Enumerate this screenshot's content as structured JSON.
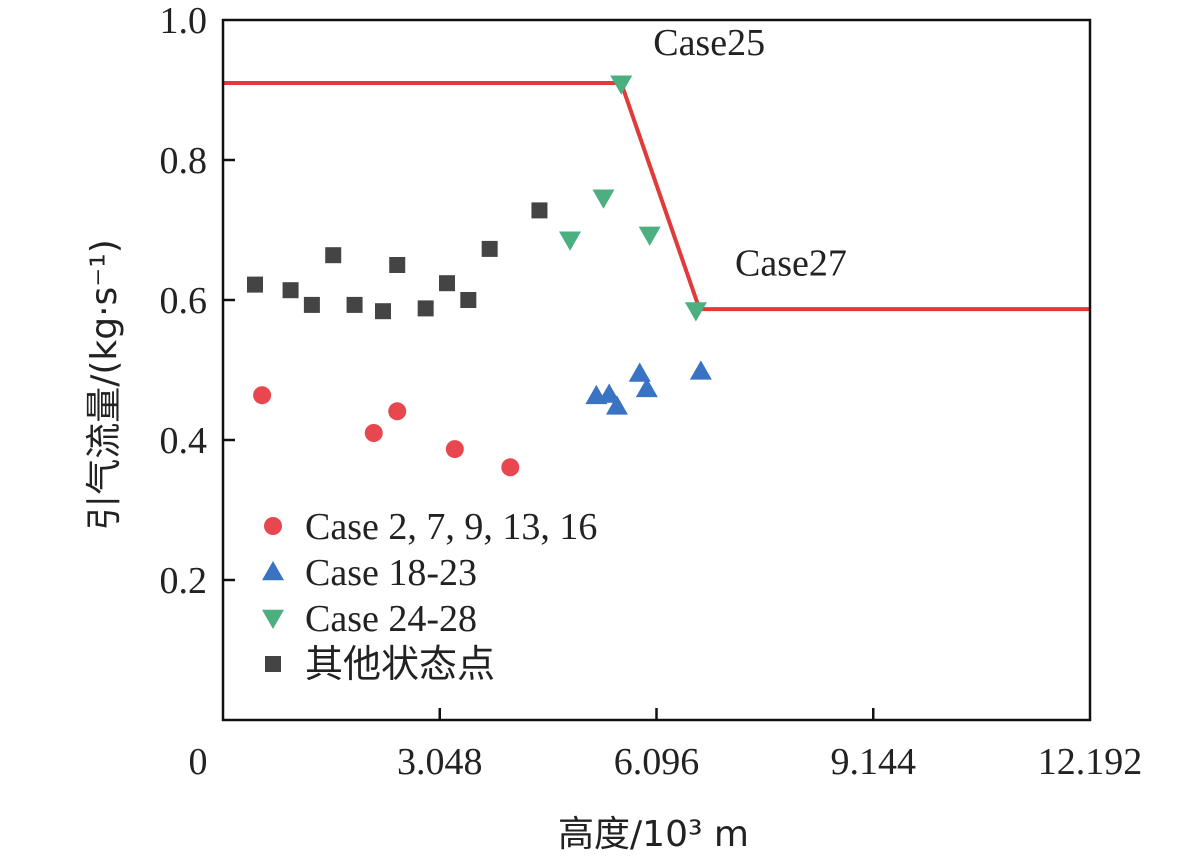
{
  "chart_data": {
    "type": "scatter",
    "xlabel": "高度/10³ m",
    "ylabel": "引气流量/(kg·s⁻¹)",
    "xlim": [
      0,
      12.192
    ],
    "ylim": [
      0,
      1.0
    ],
    "x_ticks": [
      0,
      3.048,
      6.096,
      9.144,
      12.192
    ],
    "x_tick_labels": [
      "0",
      "3.048",
      "6.096",
      "9.144",
      "12.192"
    ],
    "y_ticks": [
      0.2,
      0.4,
      0.6,
      0.8,
      1.0
    ],
    "y_tick_labels": [
      "0.2",
      "0.4",
      "0.6",
      "0.8",
      "1.0"
    ],
    "legend_position": "bottom-left",
    "series": [
      {
        "name": "Case 2, 7, 9, 13, 16",
        "marker": "circle",
        "color": "#e8474f",
        "points": [
          [
            0.55,
            0.464
          ],
          [
            2.12,
            0.41
          ],
          [
            2.45,
            0.441
          ],
          [
            3.26,
            0.387
          ],
          [
            4.04,
            0.361
          ]
        ]
      },
      {
        "name": "Case 18-23",
        "marker": "triangle-up",
        "color": "#3a72c4",
        "points": [
          [
            5.25,
            0.463
          ],
          [
            5.43,
            0.465
          ],
          [
            5.54,
            0.448
          ],
          [
            5.86,
            0.495
          ],
          [
            5.96,
            0.473
          ],
          [
            6.72,
            0.498
          ]
        ]
      },
      {
        "name": "Case 24-28",
        "marker": "triangle-down",
        "color": "#4caf7f",
        "points": [
          [
            4.88,
            0.686
          ],
          [
            5.35,
            0.746
          ],
          [
            5.6,
            0.909
          ],
          [
            6.0,
            0.693
          ],
          [
            6.65,
            0.585
          ]
        ]
      },
      {
        "name": "其他状态点",
        "marker": "square",
        "color": "#444444",
        "points": [
          [
            0.45,
            0.622
          ],
          [
            0.95,
            0.614
          ],
          [
            1.25,
            0.593
          ],
          [
            1.55,
            0.664
          ],
          [
            1.85,
            0.593
          ],
          [
            2.25,
            0.584
          ],
          [
            2.45,
            0.65
          ],
          [
            2.85,
            0.588
          ],
          [
            3.15,
            0.624
          ],
          [
            3.45,
            0.6
          ],
          [
            3.75,
            0.673
          ],
          [
            4.45,
            0.728
          ]
        ]
      }
    ],
    "reference_line": {
      "color": "#e03a3a",
      "points": [
        [
          0,
          0.91
        ],
        [
          5.6,
          0.91
        ],
        [
          6.7,
          0.587
        ],
        [
          12.192,
          0.587
        ]
      ]
    },
    "annotations": [
      {
        "text": "Case25",
        "x": 6.05,
        "y": 0.95
      },
      {
        "text": "Case27",
        "x": 7.2,
        "y": 0.635
      }
    ]
  }
}
